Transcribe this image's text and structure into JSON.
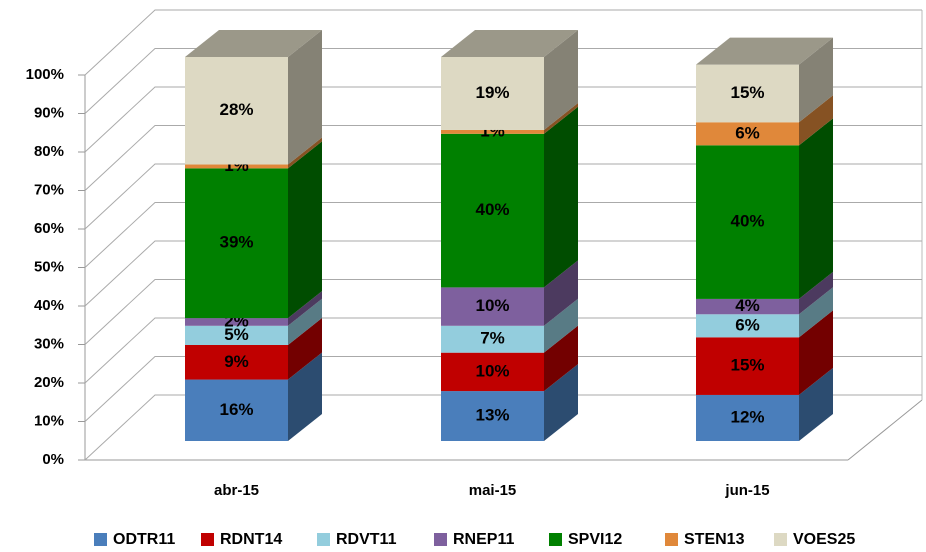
{
  "chart_data": {
    "type": "bar3d_stacked",
    "categories": [
      "abr-15",
      "mai-15",
      "jun-15"
    ],
    "series": [
      {
        "name": "ODTR11",
        "color": "#4a7ebb",
        "values": [
          16,
          13,
          12
        ],
        "value_labels": [
          "16%",
          "13%",
          "12%"
        ]
      },
      {
        "name": "RDNT14",
        "color": "#c00000",
        "values": [
          9,
          10,
          15
        ],
        "value_labels": [
          "9%",
          "10%",
          "15%"
        ]
      },
      {
        "name": "RDVT11",
        "color": "#93cddd",
        "values": [
          5,
          7,
          6
        ],
        "value_labels": [
          "5%",
          "7%",
          "6%"
        ]
      },
      {
        "name": "RNEP11",
        "color": "#7e609e",
        "values": [
          2,
          10,
          4
        ],
        "value_labels": [
          "2%",
          "10%",
          "4%"
        ]
      },
      {
        "name": "SPVI12",
        "color": "#008000",
        "values": [
          39,
          40,
          40
        ],
        "value_labels": [
          "39%",
          "40%",
          "40%"
        ]
      },
      {
        "name": "STEN13",
        "color": "#e0883a",
        "values": [
          1,
          1,
          6
        ],
        "value_labels": [
          "1%",
          "1%",
          "6%"
        ]
      },
      {
        "name": "VOES25",
        "color": "#ddd9c3",
        "values": [
          28,
          19,
          15
        ],
        "value_labels": [
          "28%",
          "19%",
          "15%"
        ]
      }
    ],
    "ylim": [
      0,
      100
    ],
    "yticks": [
      {
        "value": 0,
        "label": "0%"
      },
      {
        "value": 10,
        "label": "10%"
      },
      {
        "value": 20,
        "label": "20%"
      },
      {
        "value": 30,
        "label": "30%"
      },
      {
        "value": 40,
        "label": "40%"
      },
      {
        "value": 50,
        "label": "50%"
      },
      {
        "value": 60,
        "label": "60%"
      },
      {
        "value": 70,
        "label": "70%"
      },
      {
        "value": 80,
        "label": "80%"
      },
      {
        "value": 90,
        "label": "90%"
      },
      {
        "value": 100,
        "label": "100%"
      }
    ],
    "grid": true,
    "legend": "bottom"
  }
}
